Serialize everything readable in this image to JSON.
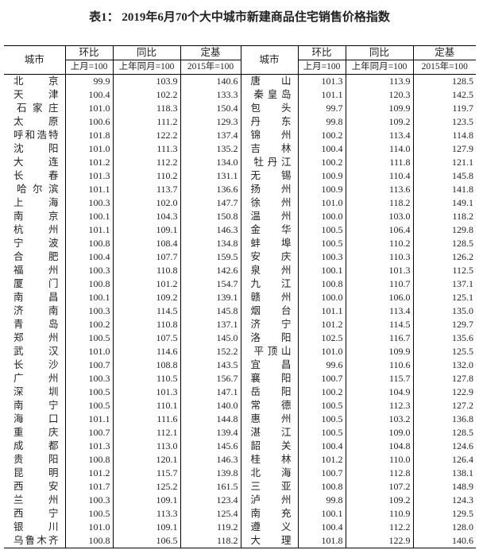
{
  "title": "表1： 2019年6月70个大中城市新建商品住宅销售价格指数",
  "headers": {
    "city": "城市",
    "mom": "环比",
    "mom_base": "上月=100",
    "yoy": "同比",
    "yoy_base": "上年同月=100",
    "fixed": "定基",
    "fixed_base": "2015年=100"
  },
  "left_rows": [
    [
      "北京",
      "99.9",
      "103.9",
      "140.6"
    ],
    [
      "天津",
      "100.4",
      "102.2",
      "133.3"
    ],
    [
      "石家庄",
      "101.0",
      "118.3",
      "150.4"
    ],
    [
      "太原",
      "100.6",
      "111.2",
      "129.3"
    ],
    [
      "呼和浩特",
      "101.8",
      "122.2",
      "137.4"
    ],
    [
      "沈阳",
      "101.0",
      "111.3",
      "135.2"
    ],
    [
      "大连",
      "101.2",
      "112.2",
      "134.0"
    ],
    [
      "长春",
      "101.3",
      "110.2",
      "131.1"
    ],
    [
      "哈尔滨",
      "101.1",
      "113.7",
      "136.6"
    ],
    [
      "上海",
      "100.3",
      "102.0",
      "147.7"
    ],
    [
      "南京",
      "100.1",
      "104.3",
      "150.8"
    ],
    [
      "杭州",
      "101.1",
      "109.1",
      "146.3"
    ],
    [
      "宁波",
      "100.8",
      "108.4",
      "134.8"
    ],
    [
      "合肥",
      "100.4",
      "107.7",
      "159.5"
    ],
    [
      "福州",
      "100.3",
      "110.8",
      "142.6"
    ],
    [
      "厦门",
      "100.8",
      "101.2",
      "154.7"
    ],
    [
      "南昌",
      "100.1",
      "109.2",
      "139.1"
    ],
    [
      "济南",
      "100.3",
      "114.5",
      "145.8"
    ],
    [
      "青岛",
      "100.2",
      "110.8",
      "137.1"
    ],
    [
      "郑州",
      "100.5",
      "107.5",
      "145.0"
    ],
    [
      "武汉",
      "101.0",
      "114.6",
      "152.2"
    ],
    [
      "长沙",
      "100.7",
      "108.8",
      "143.5"
    ],
    [
      "广州",
      "100.3",
      "110.5",
      "156.7"
    ],
    [
      "深圳",
      "100.5",
      "101.3",
      "147.1"
    ],
    [
      "南宁",
      "100.5",
      "110.1",
      "140.0"
    ],
    [
      "海口",
      "101.1",
      "111.6",
      "144.8"
    ],
    [
      "重庆",
      "100.7",
      "112.1",
      "139.4"
    ],
    [
      "成都",
      "101.3",
      "113.0",
      "145.6"
    ],
    [
      "贵阳",
      "100.8",
      "120.1",
      "146.3"
    ],
    [
      "昆明",
      "101.2",
      "115.7",
      "139.8"
    ],
    [
      "西安",
      "101.7",
      "125.2",
      "161.5"
    ],
    [
      "兰州",
      "100.3",
      "109.1",
      "123.4"
    ],
    [
      "西宁",
      "100.5",
      "113.3",
      "125.4"
    ],
    [
      "银川",
      "101.0",
      "109.1",
      "119.2"
    ],
    [
      "乌鲁木齐",
      "100.8",
      "106.5",
      "118.2"
    ]
  ],
  "right_rows": [
    [
      "唐山",
      "101.3",
      "113.9",
      "128.5"
    ],
    [
      "秦皇岛",
      "101.1",
      "120.3",
      "142.5"
    ],
    [
      "包头",
      "99.7",
      "109.9",
      "119.7"
    ],
    [
      "丹东",
      "99.8",
      "109.2",
      "123.5"
    ],
    [
      "锦州",
      "100.2",
      "113.4",
      "114.8"
    ],
    [
      "吉林",
      "100.4",
      "114.0",
      "127.9"
    ],
    [
      "牡丹江",
      "100.2",
      "111.8",
      "121.1"
    ],
    [
      "无锡",
      "100.9",
      "110.4",
      "145.8"
    ],
    [
      "扬州",
      "100.9",
      "113.6",
      "141.8"
    ],
    [
      "徐州",
      "101.0",
      "118.2",
      "149.1"
    ],
    [
      "温州",
      "100.0",
      "103.0",
      "118.2"
    ],
    [
      "金华",
      "100.5",
      "106.4",
      "129.8"
    ],
    [
      "蚌埠",
      "100.5",
      "110.2",
      "128.5"
    ],
    [
      "安庆",
      "100.3",
      "110.3",
      "126.2"
    ],
    [
      "泉州",
      "100.1",
      "101.3",
      "112.5"
    ],
    [
      "九江",
      "100.8",
      "110.7",
      "137.1"
    ],
    [
      "赣州",
      "100.0",
      "106.0",
      "125.1"
    ],
    [
      "烟台",
      "101.1",
      "113.4",
      "135.0"
    ],
    [
      "济宁",
      "101.2",
      "114.5",
      "129.7"
    ],
    [
      "洛阳",
      "102.5",
      "116.7",
      "135.6"
    ],
    [
      "平顶山",
      "101.0",
      "109.9",
      "125.5"
    ],
    [
      "宜昌",
      "99.6",
      "110.6",
      "132.0"
    ],
    [
      "襄阳",
      "100.7",
      "115.7",
      "127.8"
    ],
    [
      "岳阳",
      "100.2",
      "104.9",
      "122.9"
    ],
    [
      "常德",
      "100.5",
      "112.3",
      "127.2"
    ],
    [
      "惠州",
      "100.5",
      "103.2",
      "136.8"
    ],
    [
      "湛江",
      "100.5",
      "109.0",
      "128.5"
    ],
    [
      "韶关",
      "100.4",
      "104.8",
      "124.6"
    ],
    [
      "桂林",
      "101.2",
      "110.0",
      "126.4"
    ],
    [
      "北海",
      "100.7",
      "112.8",
      "138.1"
    ],
    [
      "三亚",
      "100.8",
      "107.2",
      "148.9"
    ],
    [
      "泸州",
      "99.8",
      "109.2",
      "124.3"
    ],
    [
      "南充",
      "100.1",
      "110.9",
      "129.5"
    ],
    [
      "遵义",
      "100.4",
      "112.2",
      "128.0"
    ],
    [
      "大理",
      "101.8",
      "122.9",
      "140.6"
    ]
  ]
}
